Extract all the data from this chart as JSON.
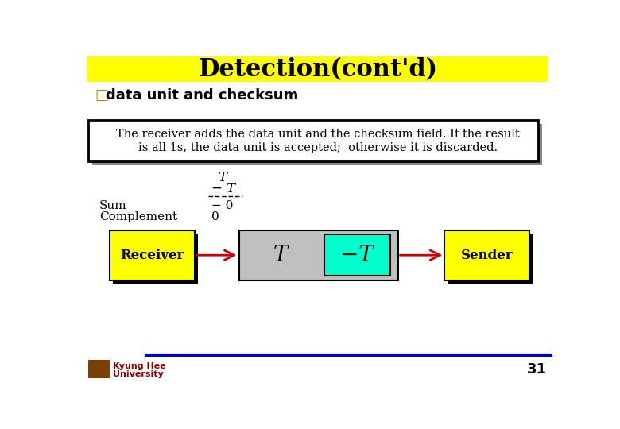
{
  "title": "Detection(cont'd)",
  "title_bg": "#FFFF00",
  "title_fontsize": 22,
  "bullet_text": "data unit and checksum",
  "bullet_symbol": "□",
  "body_box_text1": "The receiver adds the data unit and the checksum field. If the result",
  "body_box_text2": "is all 1s, the data unit is accepted;  otherwise it is discarded.",
  "math_T": "T",
  "math_negT": "− T",
  "sum_label": "Sum",
  "sum_value": "− 0",
  "complement_label": "Complement",
  "complement_value": "0",
  "receiver_label": "Receiver",
  "sender_label": "Sender",
  "T_label": "T",
  "neg_T_label": "−T",
  "receiver_box_color": "#FFFF00",
  "sender_box_color": "#FFFF00",
  "packet_box_color": "#C0C0C0",
  "checksum_box_color": "#00FFCC",
  "arrow_color": "#CC0000",
  "footer_line_color": "#0000CC",
  "footer_line1": "Kyung Hee",
  "footer_line2": "University",
  "page_number": "31",
  "bg_color": "#FFFFFF"
}
